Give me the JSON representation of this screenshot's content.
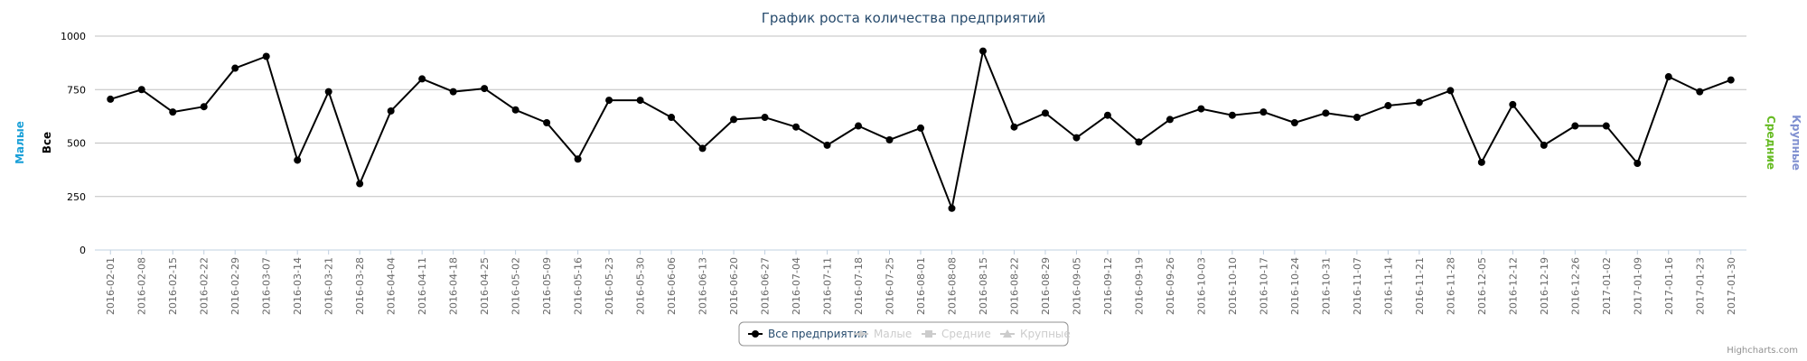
{
  "credits": "Highcharts.com",
  "chart_data": {
    "type": "line",
    "title": "График роста количества предприятий",
    "y_axes": [
      {
        "label": "Малые",
        "side": "left",
        "color": "#1aa0d8"
      },
      {
        "label": "Все",
        "side": "left",
        "color": "#000000"
      },
      {
        "label": "Средние",
        "side": "right",
        "color": "#66bb22"
      },
      {
        "label": "Крупные",
        "side": "right",
        "color": "#7f8fd0"
      }
    ],
    "ylim": [
      0,
      1000
    ],
    "yticks": [
      0,
      250,
      500,
      750,
      1000
    ],
    "grid": true,
    "legend_position": "bottom-center",
    "categories": [
      "2016-02-01",
      "2016-02-08",
      "2016-02-15",
      "2016-02-22",
      "2016-02-29",
      "2016-03-07",
      "2016-03-14",
      "2016-03-21",
      "2016-03-28",
      "2016-04-04",
      "2016-04-11",
      "2016-04-18",
      "2016-04-25",
      "2016-05-02",
      "2016-05-09",
      "2016-05-16",
      "2016-05-23",
      "2016-05-30",
      "2016-06-06",
      "2016-06-13",
      "2016-06-20",
      "2016-06-27",
      "2016-07-04",
      "2016-07-11",
      "2016-07-18",
      "2016-07-25",
      "2016-08-01",
      "2016-08-08",
      "2016-08-15",
      "2016-08-22",
      "2016-08-29",
      "2016-09-05",
      "2016-09-12",
      "2016-09-19",
      "2016-09-26",
      "2016-10-03",
      "2016-10-10",
      "2016-10-17",
      "2016-10-24",
      "2016-10-31",
      "2016-11-07",
      "2016-11-14",
      "2016-11-21",
      "2016-11-28",
      "2016-12-05",
      "2016-12-12",
      "2016-12-19",
      "2016-12-26",
      "2017-01-02",
      "2017-01-09",
      "2017-01-16",
      "2017-01-23",
      "2017-01-30"
    ],
    "series": [
      {
        "name": "Все предприятия",
        "color": "#000000",
        "visible": true,
        "values": [
          705,
          750,
          645,
          670,
          850,
          905,
          420,
          740,
          310,
          650,
          800,
          740,
          755,
          655,
          595,
          425,
          700,
          700,
          620,
          475,
          610,
          620,
          575,
          490,
          580,
          515,
          570,
          195,
          930,
          575,
          640,
          525,
          630,
          505,
          610,
          660,
          630,
          645,
          595,
          640,
          620,
          675,
          690,
          745,
          410,
          680,
          490,
          580,
          580,
          405,
          810,
          740,
          795
        ]
      },
      {
        "name": "Малые",
        "color": "#cccccc",
        "visible": false,
        "marker": "diamond"
      },
      {
        "name": "Средние",
        "color": "#cccccc",
        "visible": false,
        "marker": "square"
      },
      {
        "name": "Крупные",
        "color": "#cccccc",
        "visible": false,
        "marker": "triangle"
      }
    ]
  }
}
